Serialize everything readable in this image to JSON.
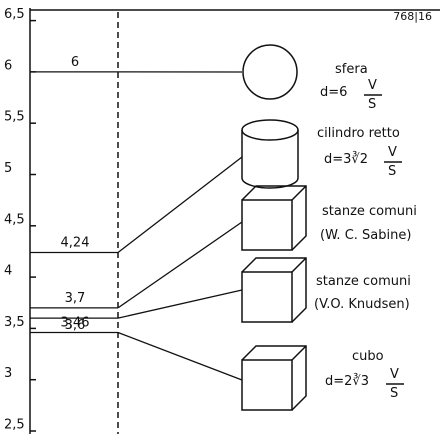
{
  "header": {
    "code": "768|16"
  },
  "axis": {
    "ylim": [
      2.5,
      6.5
    ],
    "yticks": [
      {
        "value": 2.5,
        "label": "2,5"
      },
      3,
      {
        "value": 3.5,
        "label": "3,5"
      },
      4,
      {
        "value": 4.5,
        "label": "4,5"
      },
      5,
      {
        "value": 5.5,
        "label": "5,5"
      },
      6,
      {
        "value": 6.5,
        "label": "6,5"
      }
    ]
  },
  "levels": [
    {
      "value": 6,
      "label": "6"
    },
    {
      "value": 4.24,
      "label": "4,24"
    },
    {
      "value": 3.7,
      "label": "3,7"
    },
    {
      "value": 3.6,
      "label": "3,6"
    },
    {
      "value": 3.46,
      "label": "3,46"
    }
  ],
  "shapes": [
    {
      "name": "sfera",
      "formula": "d=6",
      "num": "V",
      "den": "S"
    },
    {
      "name": "cilindro retto",
      "formula": "d=3∛2",
      "num": "V",
      "den": "S"
    },
    {
      "name": "stanze comuni",
      "note": "(W. C. Sabine)"
    },
    {
      "name": "stanze comuni",
      "note": "(V.O. Knudsen)"
    },
    {
      "name": "cubo",
      "formula": "d=2∛3",
      "num": "V",
      "den": "S"
    }
  ]
}
